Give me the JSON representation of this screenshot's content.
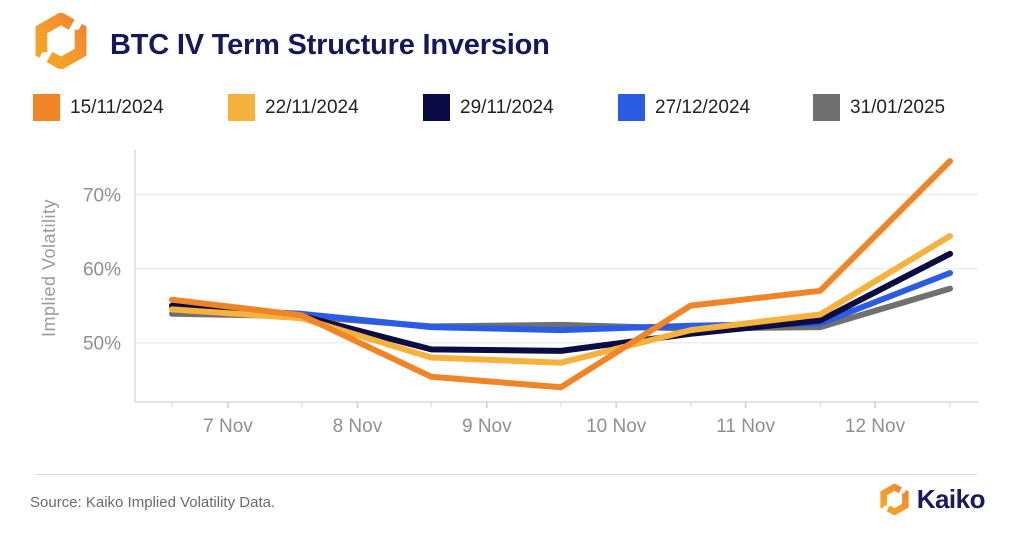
{
  "header": {
    "title": "BTC IV Term Structure Inversion"
  },
  "colors": {
    "brand_navy": "#17175e",
    "brand_orange": "#f08527",
    "axis_text": "#8f8f8f",
    "gridline": "#ededed",
    "axis_line": "#dcdcdc"
  },
  "chart_data": {
    "type": "line",
    "title": "BTC IV Term Structure Inversion",
    "xlabel": "",
    "ylabel": "Implied Volatility",
    "x_tick_labels": [
      "7 Nov",
      "8 Nov",
      "9 Nov",
      "10 Nov",
      "11 Nov",
      "12 Nov"
    ],
    "x_range_days": [
      6.5,
      12.5
    ],
    "y_ticks": [
      50,
      60,
      70
    ],
    "y_tick_labels": [
      "50%",
      "60%",
      "70%"
    ],
    "ylim": [
      42,
      76
    ],
    "grid": "horizontal",
    "legend_position": "top",
    "series": [
      {
        "name": "15/11/2024",
        "color": "#f08527",
        "values": [
          55.8,
          53.7,
          45.4,
          44.0,
          55.0,
          57.0,
          74.5
        ]
      },
      {
        "name": "22/11/2024",
        "color": "#f5b33e",
        "values": [
          54.5,
          53.3,
          48.0,
          47.3,
          51.7,
          53.8,
          64.4
        ]
      },
      {
        "name": "29/11/2024",
        "color": "#0b0b45",
        "values": [
          55.0,
          53.6,
          49.1,
          48.9,
          51.2,
          53.0,
          62.0
        ]
      },
      {
        "name": "27/12/2024",
        "color": "#2b5ce6",
        "values": [
          54.7,
          53.9,
          52.1,
          51.7,
          52.3,
          52.6,
          59.4
        ]
      },
      {
        "name": "31/01/2025",
        "color": "#707070",
        "values": [
          53.9,
          53.6,
          52.2,
          52.4,
          51.9,
          52.1,
          57.3
        ]
      }
    ]
  },
  "footer": {
    "source": "Source: Kaiko Implied Volatility Data.",
    "brand": "Kaiko"
  }
}
